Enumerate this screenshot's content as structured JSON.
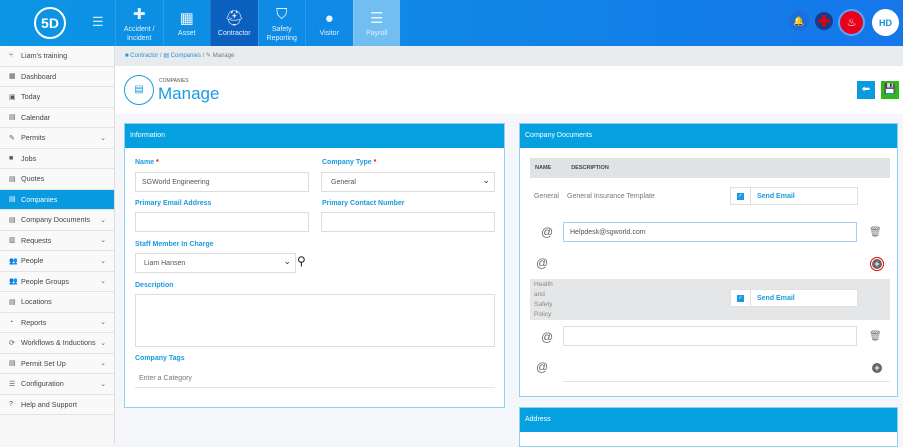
{
  "topbar": {
    "logo": "5D",
    "nav": [
      {
        "label": "Accident / Incident",
        "icon": "first-aid-icon"
      },
      {
        "label": "Asset",
        "icon": "boxes-icon"
      },
      {
        "label": "Contractor",
        "icon": "hard-hat-icon",
        "active": true
      },
      {
        "label": "Safety Reporting",
        "icon": "shield-document-icon"
      },
      {
        "label": "Visitor",
        "icon": "user-icon"
      },
      {
        "label": "Payroll",
        "icon": "coins-icon"
      }
    ],
    "avatar": "HD",
    "colors": {
      "bar": "#0b95e3",
      "active": "#0b5fbe",
      "fire": "#e8001c"
    }
  },
  "sidebar": {
    "items": [
      {
        "label": "Liam's training"
      },
      {
        "label": "Dashboard"
      },
      {
        "label": "Today"
      },
      {
        "label": "Calendar"
      },
      {
        "label": "Permits",
        "chev": true
      },
      {
        "label": "Jobs"
      },
      {
        "label": "Quotes"
      },
      {
        "label": "Companies",
        "active": true
      },
      {
        "label": "Company Documents",
        "chev": true
      },
      {
        "label": "Requests",
        "chev": true
      },
      {
        "label": "People",
        "chev": true
      },
      {
        "label": "People Groups",
        "chev": true
      },
      {
        "label": "Locations"
      },
      {
        "label": "Reports",
        "chev": true
      },
      {
        "label": "Workflows & Inductions",
        "chev": true
      },
      {
        "label": "Permit Set Up",
        "chev": true
      },
      {
        "label": "Configuration",
        "chev": true
      },
      {
        "label": "Help and Support"
      }
    ]
  },
  "breadcrumb": {
    "c1": "Contractor",
    "c2": "Companies",
    "c3": "Manage",
    "sep": "/"
  },
  "header": {
    "sub": "COMPANIES",
    "title": "Manage"
  },
  "info": {
    "title": "Information",
    "name_label": "Name",
    "name_value": "SGWorld Engineering",
    "type_label": "Company Type",
    "type_value": "General",
    "email_label": "Primary Email Address",
    "contact_label": "Primary Contact Number",
    "staff_label": "Staff Member In Charge",
    "staff_value": "Liam Hansen",
    "desc_label": "Description",
    "tags_label": "Company Tags",
    "tags_placeholder": "Enter a Category",
    "req": "*"
  },
  "docs": {
    "title": "Company Documents",
    "col_name": "NAME",
    "col_desc": "DESCRIPTION",
    "send_email": "Send Email",
    "at": "@",
    "rows": [
      {
        "name": "General",
        "desc": "General Insurance Template",
        "email": "Helpdesk@sgworld.com"
      },
      {
        "name": "Health and Safety Policy",
        "desc": "",
        "email": ""
      }
    ]
  },
  "address": {
    "title": "Address"
  }
}
